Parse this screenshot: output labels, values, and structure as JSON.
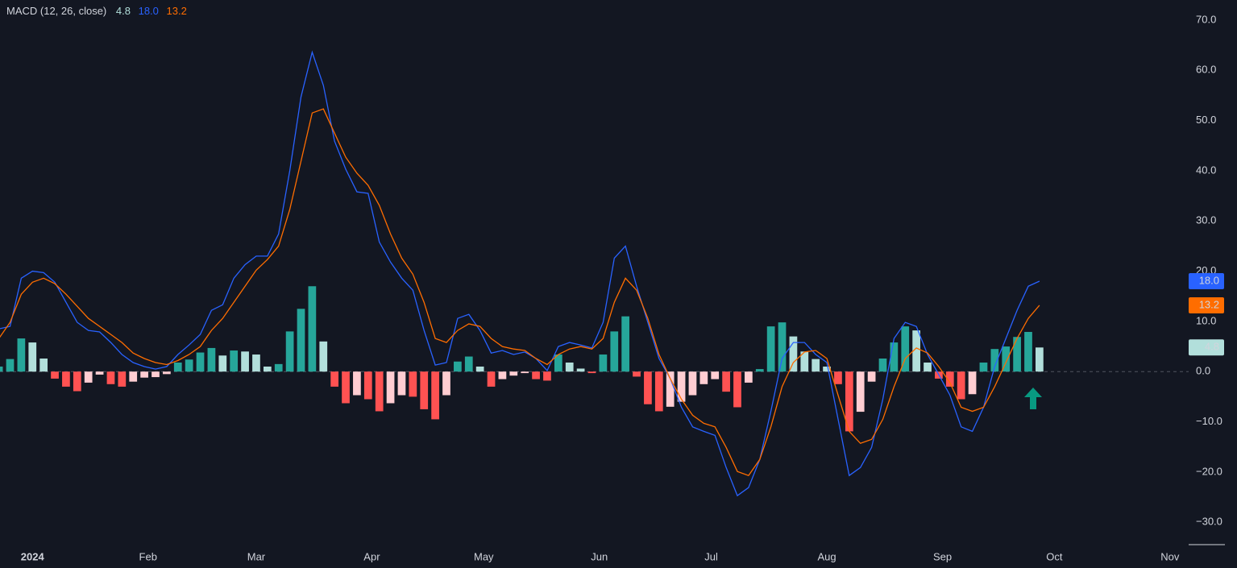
{
  "chart_data": {
    "type": "macd",
    "title": "MACD (12, 26, close)",
    "x": [
      -9,
      -6,
      -3,
      0,
      3,
      6,
      9,
      12,
      15,
      18,
      21,
      24,
      27,
      30,
      33,
      36,
      39,
      42,
      45,
      48,
      51,
      54,
      57,
      60,
      63,
      66,
      69,
      72,
      75,
      78,
      81,
      84,
      87,
      90,
      93,
      96,
      99,
      102,
      105,
      108,
      111,
      114,
      117,
      120,
      123,
      126,
      129,
      132,
      135,
      138,
      141,
      144,
      147,
      150,
      153,
      156,
      159,
      162,
      165,
      168,
      171,
      174,
      177,
      180,
      183,
      186,
      189,
      192,
      195,
      198,
      201,
      204,
      207,
      210,
      213,
      216,
      219,
      222,
      225,
      228,
      231,
      234,
      237,
      240,
      243,
      246,
      249,
      252,
      255,
      258,
      261,
      264,
      267,
      270
    ],
    "xlim": [
      -8.7,
      310
    ],
    "xticks": [
      {
        "value": 0,
        "label": "2024"
      },
      {
        "value": 31,
        "label": "Feb"
      },
      {
        "value": 60,
        "label": "Mar"
      },
      {
        "value": 91,
        "label": "Apr"
      },
      {
        "value": 121,
        "label": "May"
      },
      {
        "value": 152,
        "label": "Jun"
      },
      {
        "value": 182,
        "label": "Jul"
      },
      {
        "value": 213,
        "label": "Aug"
      },
      {
        "value": 244,
        "label": "Sep"
      },
      {
        "value": 274,
        "label": "Oct"
      },
      {
        "value": 305,
        "label": "Nov"
      }
    ],
    "ylim": [
      -34.3,
      74.0
    ],
    "yticks": [
      {
        "value": -30,
        "label": "−30.0"
      },
      {
        "value": -20,
        "label": "−20.0"
      },
      {
        "value": -10,
        "label": "−10.0"
      },
      {
        "value": 0,
        "label": "0.0"
      },
      {
        "value": 10,
        "label": "10.0"
      },
      {
        "value": 20,
        "label": "20.0"
      },
      {
        "value": 30,
        "label": "30.0"
      },
      {
        "value": 40,
        "label": "40.0"
      },
      {
        "value": 50,
        "label": "50.0"
      },
      {
        "value": 60,
        "label": "60.0"
      },
      {
        "value": 70,
        "label": "70.0"
      }
    ],
    "grid": false,
    "histogram": {
      "last_label": "4.8",
      "label_color": "#b2dfdb",
      "colors": {
        "up_rising": "#26a69a",
        "up_falling": "#b2dfdb",
        "down_falling": "#ff5252",
        "down_rising": "#ffcdd2"
      },
      "values": [
        1.0,
        2.5,
        6.6,
        5.8,
        2.6,
        -1.4,
        -3.0,
        -3.9,
        -2.2,
        -0.6,
        -2.5,
        -3.0,
        -2.0,
        -1.2,
        -1.1,
        -0.5,
        1.8,
        2.4,
        3.8,
        4.7,
        3.2,
        4.2,
        4.0,
        3.4,
        1.0,
        1.5,
        8.0,
        12.5,
        17.0,
        6.0,
        -3.0,
        -6.3,
        -4.7,
        -5.5,
        -7.9,
        -6.3,
        -4.7,
        -5.0,
        -7.5,
        -9.5,
        -4.7,
        2.0,
        3.0,
        1.0,
        -3.0,
        -1.5,
        -0.8,
        -0.3,
        -1.5,
        -1.8,
        3.4,
        1.8,
        0.6,
        -0.3,
        3.4,
        8.0,
        11.0,
        -1.0,
        -6.5,
        -7.9,
        -7.0,
        -6.0,
        -4.7,
        -2.5,
        -1.5,
        -4.0,
        -7.1,
        -2.2,
        0.5,
        9.0,
        9.8,
        7.0,
        4.0,
        2.5,
        1.0,
        -2.5,
        -11.9,
        -8.0,
        -2.0,
        2.6,
        5.8,
        9.0,
        8.2,
        1.8,
        -1.4,
        -3.0,
        -5.5,
        -4.5,
        1.8,
        4.5,
        5.0,
        6.9,
        7.9,
        4.8
      ]
    },
    "series": [
      {
        "color": "#2962ff",
        "last_label": "18.0",
        "values": [
          8.5,
          9,
          18.6,
          20,
          19.7,
          17.8,
          13.8,
          9.8,
          8.2,
          7.9,
          5.8,
          3.4,
          1.8,
          1.0,
          0.5,
          1.0,
          3.4,
          5.3,
          7.4,
          12.2,
          13.3,
          18.6,
          21.3,
          23,
          23,
          27.4,
          40,
          54.7,
          63.6,
          57,
          45.9,
          40.3,
          35.8,
          35.5,
          25.8,
          21.8,
          18.6,
          16.2,
          8.2,
          1.3,
          1.8,
          10.6,
          11.4,
          8.2,
          3.7,
          4.2,
          3.4,
          3.9,
          2.6,
          0.2,
          5.0,
          5.8,
          5.3,
          4.7,
          9.8,
          22.6,
          25,
          17,
          9.8,
          2.6,
          -1.4,
          -7.1,
          -11,
          -11.9,
          -12.7,
          -19.1,
          -24.7,
          -23.1,
          -17.5,
          -7.9,
          2.6,
          5.8,
          5.8,
          3.4,
          1.8,
          -9.5,
          -20.7,
          -19.1,
          -15.1,
          -5.5,
          6.6,
          9.8,
          9.0,
          3.4,
          -0.6,
          -4.7,
          -11,
          -11.9,
          -7.1,
          1.0,
          6.6,
          12.2,
          17,
          18.0
        ]
      },
      {
        "color": "#ff6d00",
        "last_label": "13.2",
        "values": [
          6.6,
          9.8,
          15.4,
          17.8,
          18.6,
          17.5,
          15.4,
          13,
          10.6,
          9.0,
          7.4,
          5.8,
          3.7,
          2.6,
          1.8,
          1.4,
          2.2,
          3.4,
          5.0,
          8.2,
          10.6,
          13.8,
          17,
          20.2,
          22.3,
          25,
          32.3,
          41.9,
          51.5,
          52.3,
          47.5,
          42.7,
          39.5,
          37.1,
          33.1,
          27.4,
          22.6,
          19.4,
          13.8,
          6.6,
          5.8,
          8.2,
          9.5,
          9.0,
          6.6,
          5.0,
          4.5,
          4.2,
          2.6,
          1.4,
          3.4,
          4.5,
          5.0,
          4.5,
          6.6,
          13.8,
          18.6,
          16.2,
          10.6,
          3.4,
          -1.4,
          -5.5,
          -8.7,
          -10.3,
          -11,
          -15.1,
          -19.9,
          -20.7,
          -17.5,
          -11,
          -3.0,
          1.8,
          3.9,
          4.2,
          2.6,
          -4.7,
          -11.9,
          -14.3,
          -13.5,
          -9.5,
          -3.0,
          2.6,
          4.7,
          3.7,
          1.0,
          -2.2,
          -7.1,
          -7.9,
          -7.1,
          -3.0,
          1.8,
          6.6,
          10.6,
          13.2
        ]
      }
    ]
  }
}
